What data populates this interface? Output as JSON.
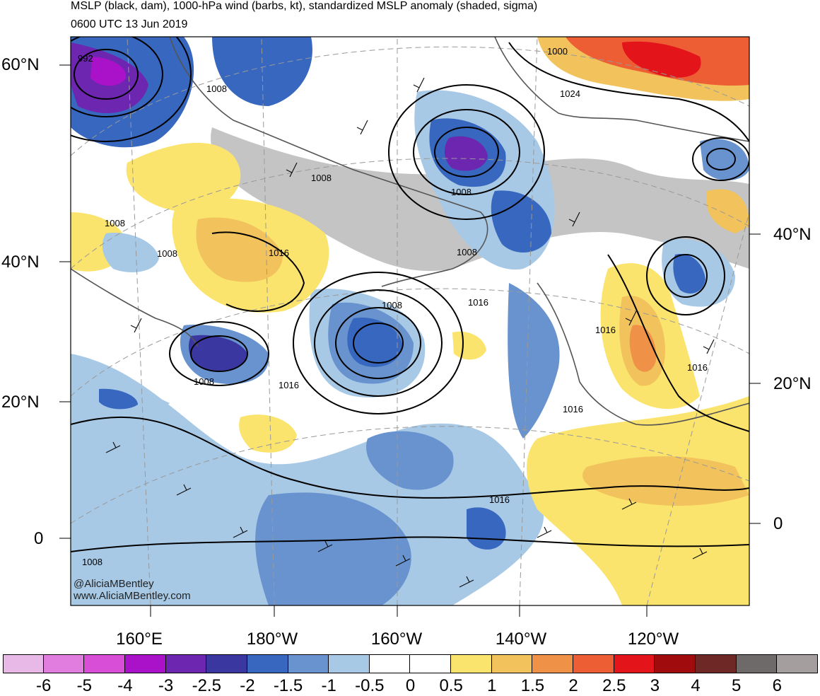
{
  "title_line1": "MSLP (black, dam), 1000-hPa wind (barbs, kt), standardized MSLP anomaly (shaded, sigma)",
  "title_line2": "0600 UTC 13 Jun 2019",
  "latitude_labels": {
    "left": [
      "60°N",
      "40°N",
      "20°N",
      "0"
    ],
    "right": [
      "40°N",
      "20°N",
      "0"
    ]
  },
  "longitude_labels": [
    "160°E",
    "180°W",
    "160°W",
    "140°W",
    "120°W"
  ],
  "credits": [
    "@AliciaMBentley",
    "www.AliciaMBentley.com"
  ],
  "isobar_labels": [
    "992",
    "1008",
    "1008",
    "1008",
    "1008",
    "1008",
    "1008",
    "1008",
    "1008",
    "1016",
    "1016",
    "1016",
    "1016",
    "1016",
    "1016",
    "1016",
    "1024",
    "1000"
  ],
  "colorbar": {
    "colors": [
      "#e8b9e6",
      "#e27de0",
      "#d84ed6",
      "#aa12c9",
      "#6c26b0",
      "#3a37a0",
      "#3767be",
      "#6893cf",
      "#a7c9e6",
      "#ffffff",
      "#ffffff",
      "#fbe46d",
      "#f2c35d",
      "#ef9147",
      "#ee5e35",
      "#e3151b",
      "#a00c0d",
      "#6e2826",
      "#6f6a6a",
      "#a59e9e"
    ],
    "ticks": [
      "-6",
      "-5",
      "-4",
      "-3",
      "-2.5",
      "-2",
      "-1.5",
      "-1",
      "-0.5",
      "0",
      "0.5",
      "1",
      "1.5",
      "2",
      "2.5",
      "3",
      "4",
      "5",
      "6"
    ]
  }
}
